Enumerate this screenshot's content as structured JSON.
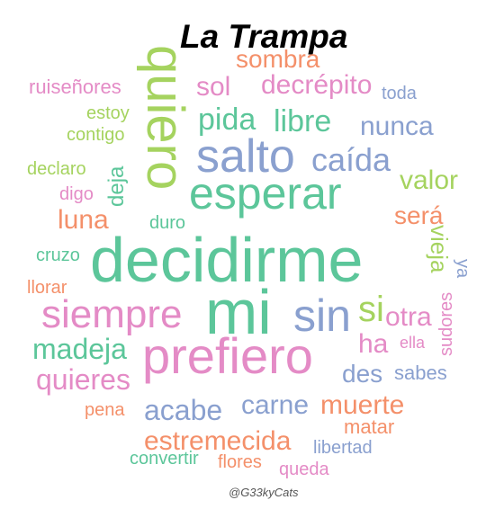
{
  "title": "La Trampa",
  "credit": "@G33kyCats",
  "colors": {
    "teal": "#5cc69a",
    "blue": "#8aa0cf",
    "pink": "#e48bc6",
    "orange": "#f4906a",
    "green": "#a5d35f"
  },
  "words": [
    {
      "text": "decidirme",
      "color": "teal"
    },
    {
      "text": "esperar",
      "color": "teal"
    },
    {
      "text": "quiero",
      "color": "green"
    },
    {
      "text": "mi",
      "color": "teal"
    },
    {
      "text": "prefiero",
      "color": "pink"
    },
    {
      "text": "salto",
      "color": "blue"
    },
    {
      "text": "siempre",
      "color": "pink"
    },
    {
      "text": "sin",
      "color": "blue"
    },
    {
      "text": "pida",
      "color": "teal"
    },
    {
      "text": "libre",
      "color": "teal"
    },
    {
      "text": "caída",
      "color": "blue"
    },
    {
      "text": "sol",
      "color": "pink"
    },
    {
      "text": "decrépito",
      "color": "pink"
    },
    {
      "text": "sombra",
      "color": "orange"
    },
    {
      "text": "nunca",
      "color": "blue"
    },
    {
      "text": "valor",
      "color": "green"
    },
    {
      "text": "será",
      "color": "orange"
    },
    {
      "text": "luna",
      "color": "orange"
    },
    {
      "text": "vieja",
      "color": "green"
    },
    {
      "text": "si",
      "color": "green"
    },
    {
      "text": "otra",
      "color": "pink"
    },
    {
      "text": "ha",
      "color": "pink"
    },
    {
      "text": "ella",
      "color": "pink"
    },
    {
      "text": "madeja",
      "color": "teal"
    },
    {
      "text": "quieres",
      "color": "pink"
    },
    {
      "text": "des",
      "color": "blue"
    },
    {
      "text": "sabes",
      "color": "blue"
    },
    {
      "text": "acabe",
      "color": "blue"
    },
    {
      "text": "carne",
      "color": "blue"
    },
    {
      "text": "muerte",
      "color": "orange"
    },
    {
      "text": "estremecida",
      "color": "orange"
    },
    {
      "text": "matar",
      "color": "orange"
    },
    {
      "text": "libertad",
      "color": "blue"
    },
    {
      "text": "convertir",
      "color": "teal"
    },
    {
      "text": "flores",
      "color": "orange"
    },
    {
      "text": "queda",
      "color": "pink"
    },
    {
      "text": "pena",
      "color": "orange"
    },
    {
      "text": "cruzo",
      "color": "teal"
    },
    {
      "text": "llorar",
      "color": "orange"
    },
    {
      "text": "duro",
      "color": "teal"
    },
    {
      "text": "digo",
      "color": "pink"
    },
    {
      "text": "declaro",
      "color": "green"
    },
    {
      "text": "deja",
      "color": "teal"
    },
    {
      "text": "contigo",
      "color": "green"
    },
    {
      "text": "estoy",
      "color": "green"
    },
    {
      "text": "ruiseñores",
      "color": "pink"
    },
    {
      "text": "toda",
      "color": "blue"
    },
    {
      "text": "sudores",
      "color": "pink"
    },
    {
      "text": "ya",
      "color": "blue"
    }
  ]
}
